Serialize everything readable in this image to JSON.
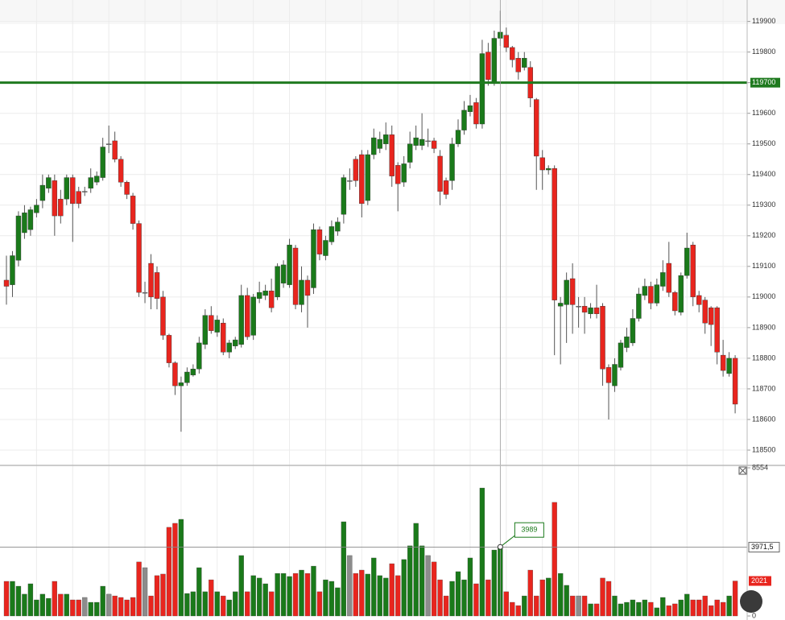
{
  "chart_data": [
    {
      "type": "candlestick",
      "open": [
        119055,
        119040,
        119120,
        119210,
        119220,
        119275,
        119315,
        119355,
        119380,
        119320,
        119320,
        119390,
        119345,
        119345,
        119355,
        119375,
        119390,
        119500,
        119510,
        119450,
        119375,
        119330,
        119240,
        119015,
        119110,
        119080,
        119000,
        118875,
        118785,
        118710,
        118720,
        118745,
        118765,
        118845,
        118940,
        118885,
        118915,
        118820,
        118840,
        118845,
        119005,
        118875,
        118995,
        119005,
        119020,
        119000,
        119045,
        119040,
        119160,
        118975,
        119055,
        119030,
        119220,
        119135,
        119180,
        119215,
        119270,
        119380,
        119450,
        119465,
        119315,
        119465,
        119485,
        119500,
        119530,
        119430,
        119375,
        119440,
        119495,
        119495,
        119510,
        119510,
        119460,
        119380,
        119380,
        119500,
        119545,
        119605,
        119635,
        119565,
        119800,
        119700,
        119845,
        119855,
        119815,
        119780,
        119750,
        119750,
        119645,
        119455,
        119415,
        119420,
        118970,
        118975,
        119060,
        118970,
        118970,
        118945,
        118965,
        118970,
        118770,
        118710,
        118770,
        118835,
        118850,
        118930,
        119005,
        119035,
        118980,
        119035,
        119110,
        119015,
        118950,
        119070,
        119170,
        119005,
        118990,
        118965,
        118965,
        118810,
        118750,
        118800
      ],
      "high": [
        119135,
        119150,
        119280,
        119300,
        119295,
        119320,
        119400,
        119400,
        119400,
        119350,
        119400,
        119400,
        119360,
        119360,
        119420,
        119410,
        119520,
        119560,
        119540,
        119460,
        119380,
        119340,
        119250,
        119050,
        119140,
        119100,
        119020,
        118880,
        118790,
        118740,
        118770,
        118780,
        118870,
        118960,
        118970,
        118940,
        118930,
        118860,
        118870,
        119040,
        119030,
        119010,
        119050,
        119040,
        119060,
        119110,
        119120,
        119190,
        119170,
        119100,
        119070,
        119240,
        119230,
        119200,
        119250,
        119260,
        119400,
        119420,
        119460,
        119480,
        119480,
        119550,
        119540,
        119570,
        119560,
        119440,
        119460,
        119540,
        119560,
        119600,
        119550,
        119520,
        119480,
        119390,
        119520,
        119580,
        119640,
        119660,
        119650,
        119840,
        119830,
        119870,
        119935,
        119880,
        119820,
        119800,
        119800,
        119770,
        119650,
        119480,
        119430,
        119430,
        119000,
        119080,
        119110,
        119000,
        119000,
        118980,
        119040,
        118980,
        118780,
        118800,
        118860,
        118900,
        118960,
        119030,
        119060,
        119050,
        119060,
        119120,
        119180,
        119020,
        119080,
        119210,
        119180,
        119020,
        119000,
        118970,
        118970,
        118860,
        118820,
        118810
      ],
      "low": [
        118975,
        119000,
        119100,
        119190,
        119200,
        119260,
        119290,
        119340,
        119200,
        119240,
        119300,
        119180,
        119290,
        119330,
        119340,
        119365,
        119380,
        119470,
        119440,
        119360,
        119320,
        119220,
        119000,
        118980,
        118960,
        118960,
        118860,
        118770,
        118680,
        118560,
        118710,
        118740,
        118750,
        118830,
        118880,
        118870,
        118810,
        118800,
        118830,
        118835,
        118860,
        118860,
        118980,
        118990,
        118950,
        118990,
        119030,
        119030,
        118960,
        118950,
        118900,
        119010,
        119120,
        119120,
        119170,
        119200,
        119240,
        119350,
        119360,
        119260,
        119300,
        119450,
        119470,
        119480,
        119360,
        119280,
        119360,
        119420,
        119480,
        119480,
        119490,
        119470,
        119300,
        119320,
        119350,
        119490,
        119530,
        119590,
        119550,
        119550,
        119690,
        119690,
        119820,
        119800,
        119750,
        119710,
        119740,
        119620,
        119350,
        119350,
        119400,
        118810,
        118780,
        118850,
        118880,
        118900,
        118880,
        118930,
        118930,
        118710,
        118600,
        118690,
        118760,
        118820,
        118840,
        118920,
        118990,
        118960,
        118970,
        119020,
        119000,
        118940,
        118940,
        119060,
        118970,
        118950,
        118880,
        118840,
        118780,
        118740,
        118740,
        118620
      ],
      "close": [
        119035,
        119135,
        119265,
        119275,
        119285,
        119300,
        119365,
        119390,
        119265,
        119265,
        119390,
        119305,
        119305,
        119345,
        119390,
        119395,
        119490,
        119500,
        119450,
        119375,
        119335,
        119240,
        119015,
        119015,
        119000,
        118995,
        118875,
        118785,
        118710,
        118720,
        118755,
        118765,
        118850,
        118940,
        118890,
        118925,
        118820,
        118850,
        118860,
        119005,
        118870,
        119000,
        119015,
        119020,
        118965,
        119100,
        119105,
        119170,
        118975,
        119055,
        119005,
        119220,
        119140,
        119185,
        119230,
        119245,
        119390,
        119380,
        119380,
        119305,
        119465,
        119520,
        119515,
        119530,
        119395,
        119370,
        119435,
        119500,
        119520,
        119515,
        119510,
        119485,
        119345,
        119335,
        119500,
        119545,
        119610,
        119625,
        119565,
        119795,
        119710,
        119845,
        119865,
        119815,
        119775,
        119735,
        119780,
        119650,
        119460,
        119415,
        119420,
        118990,
        118980,
        119055,
        118975,
        118970,
        118950,
        118965,
        118945,
        118765,
        118720,
        118780,
        118850,
        118870,
        118930,
        119010,
        119035,
        118980,
        119040,
        119080,
        119015,
        118955,
        119070,
        119160,
        119000,
        118975,
        118915,
        118910,
        118820,
        118760,
        118800,
        118650
      ],
      "up_color": "#1a7a1a",
      "down_color": "#e8251e",
      "flat_color": "#8c8c8c",
      "ylim": [
        118450,
        119970
      ],
      "yticks": [
        118500,
        118600,
        118700,
        118800,
        118900,
        119000,
        119100,
        119200,
        119300,
        119400,
        119500,
        119600,
        119700,
        119800,
        119900
      ],
      "grid": true,
      "price_line": 119700,
      "price_line_color": "#1f7a1f"
    },
    {
      "type": "bar",
      "values": [
        2000,
        2000,
        1720,
        1260,
        1860,
        930,
        1260,
        1020,
        2000,
        1260,
        1260,
        930,
        930,
        1070,
        790,
        790,
        1720,
        1260,
        1160,
        1070,
        930,
        1070,
        3120,
        2790,
        1160,
        2330,
        2420,
        5120,
        5350,
        5580,
        1300,
        1400,
        2790,
        1400,
        2090,
        1400,
        1160,
        930,
        1400,
        3490,
        1400,
        2330,
        2190,
        1860,
        1400,
        2460,
        2460,
        2280,
        2460,
        2650,
        2460,
        2880,
        1400,
        2090,
        2000,
        1630,
        5440,
        3490,
        2460,
        2650,
        2420,
        3350,
        2330,
        2190,
        3020,
        2330,
        3260,
        4050,
        5350,
        4050,
        3490,
        3120,
        2090,
        1160,
        2000,
        2560,
        2090,
        3350,
        1860,
        7390,
        2090,
        3810,
        3989,
        1400,
        790,
        600,
        1160,
        2650,
        1160,
        2090,
        2190,
        6560,
        2460,
        1770,
        1160,
        1160,
        1160,
        700,
        700,
        2190,
        2000,
        1160,
        700,
        790,
        930,
        790,
        930,
        790,
        470,
        1070,
        600,
        700,
        930,
        1260,
        930,
        930,
        1160,
        600,
        930,
        790,
        1160,
        2021
      ],
      "ylim": [
        0,
        8554
      ],
      "yticks": [
        8554,
        0
      ],
      "crosshair_level": {
        "value": 3971.5,
        "label": "3971,5"
      }
    }
  ]
}
